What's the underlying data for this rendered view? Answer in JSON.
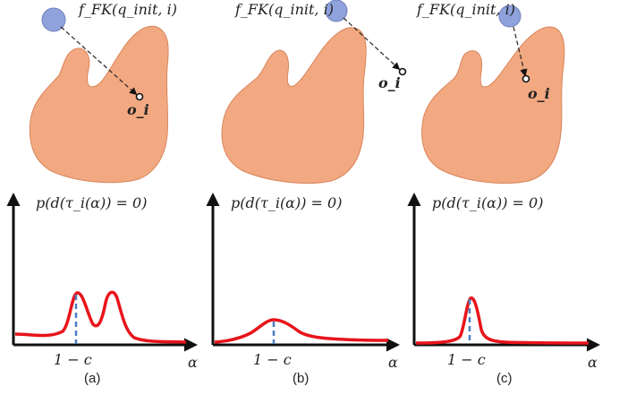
{
  "panels": [
    {
      "fk_label": "f_FK(q_init, i)",
      "point_label": "o_i",
      "prob_label": "p(d(τ_i(α)) = 0)",
      "tick_label": "1 − c",
      "axis_label": "α",
      "caption": "(a)",
      "profile": "two-peaks"
    },
    {
      "fk_label": "f_FK(q_init, i)",
      "point_label": "o_i",
      "prob_label": "p(d(τ_i(α)) = 0)",
      "tick_label": "1 − c",
      "axis_label": "α",
      "caption": "(b)",
      "profile": "broad-peak"
    },
    {
      "fk_label": "f_FK(q_init, i)",
      "point_label": "o_i",
      "prob_label": "p(d(τ_i(α)) = 0)",
      "tick_label": "1 − c",
      "axis_label": "α",
      "caption": "(c)",
      "profile": "sharp-peak"
    }
  ],
  "colors": {
    "obstacle": "#f2a981",
    "sphere": "#8fa2dc",
    "curve": "#e8141b",
    "marker": "#4a7fc0"
  }
}
